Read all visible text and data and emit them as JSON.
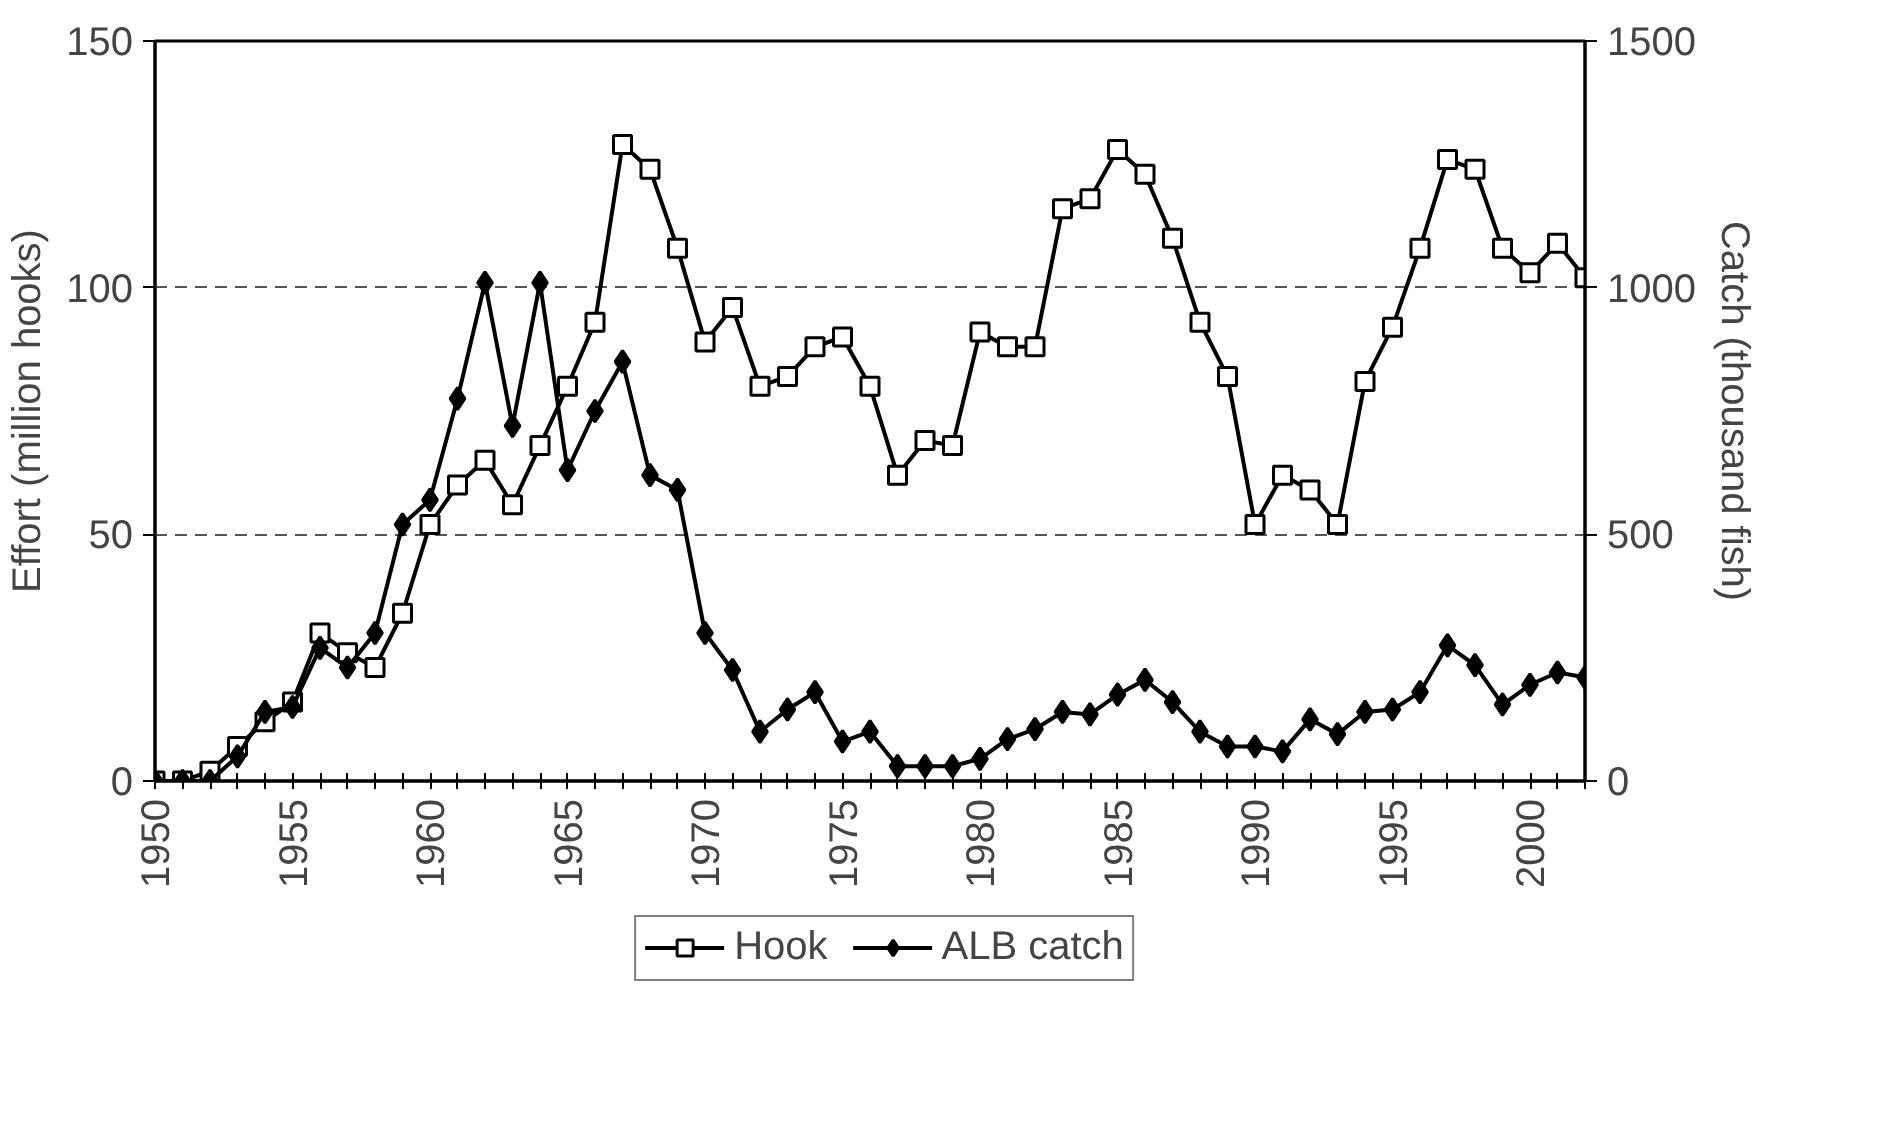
{
  "chart_data": {
    "type": "line",
    "xlabel": null,
    "ylabel": "Effort (million hooks)",
    "y2label": "Catch (thousand fish)",
    "x": [
      1950,
      1951,
      1952,
      1953,
      1954,
      1955,
      1956,
      1957,
      1958,
      1959,
      1960,
      1961,
      1962,
      1963,
      1964,
      1965,
      1966,
      1967,
      1968,
      1969,
      1970,
      1971,
      1972,
      1973,
      1974,
      1975,
      1976,
      1977,
      1978,
      1979,
      1980,
      1981,
      1982,
      1983,
      1984,
      1985,
      1986,
      1987,
      1988,
      1989,
      1990,
      1991,
      1992,
      1993,
      1994,
      1995,
      1996,
      1997,
      1998,
      1999,
      2000,
      2001,
      2002
    ],
    "series": [
      {
        "name": "Hook",
        "color": "#000000",
        "marker": "square",
        "values": [
          0,
          0,
          2,
          7,
          12,
          16,
          30,
          26,
          23,
          34,
          52,
          60,
          65,
          56,
          68,
          80,
          93,
          129,
          124,
          108,
          89,
          96,
          80,
          82,
          88,
          90,
          80,
          62,
          69,
          68,
          91,
          88,
          88,
          116,
          118,
          128,
          123,
          110,
          93,
          82,
          52,
          62,
          59,
          52,
          81,
          92,
          108,
          126,
          124,
          108,
          103,
          109,
          102
        ]
      },
      {
        "name": "ALB catch",
        "color": "#000000",
        "marker": "diamond",
        "axis": "y2",
        "values": [
          0,
          0,
          0,
          50,
          140,
          150,
          270,
          230,
          300,
          520,
          570,
          775,
          1010,
          720,
          1010,
          630,
          750,
          850,
          620,
          590,
          300,
          225,
          100,
          145,
          180,
          80,
          100,
          30,
          30,
          30,
          45,
          85,
          105,
          140,
          135,
          175,
          205,
          160,
          100,
          70,
          70,
          60,
          125,
          95,
          140,
          145,
          180,
          275,
          235,
          155,
          195,
          220,
          210
        ]
      }
    ],
    "xlim": [
      1950,
      2002
    ],
    "xticks": [
      1950,
      {
        "value": 1951,
        "label": null
      },
      {
        "value": 1952,
        "label": null
      },
      {
        "value": 1953,
        "label": null
      },
      {
        "value": 1954,
        "label": null
      },
      1955,
      {
        "value": 1956,
        "label": null
      },
      {
        "value": 1957,
        "label": null
      },
      {
        "value": 1958,
        "label": null
      },
      {
        "value": 1959,
        "label": null
      },
      1960,
      {
        "value": 1961,
        "label": null
      },
      {
        "value": 1962,
        "label": null
      },
      {
        "value": 1963,
        "label": null
      },
      {
        "value": 1964,
        "label": null
      },
      1965,
      {
        "value": 1966,
        "label": null
      },
      {
        "value": 1967,
        "label": null
      },
      {
        "value": 1968,
        "label": null
      },
      {
        "value": 1969,
        "label": null
      },
      1970,
      {
        "value": 1971,
        "label": null
      },
      {
        "value": 1972,
        "label": null
      },
      {
        "value": 1973,
        "label": null
      },
      {
        "value": 1974,
        "label": null
      },
      1975,
      {
        "value": 1976,
        "label": null
      },
      {
        "value": 1977,
        "label": null
      },
      {
        "value": 1978,
        "label": null
      },
      {
        "value": 1979,
        "label": null
      },
      1980,
      {
        "value": 1981,
        "label": null
      },
      {
        "value": 1982,
        "label": null
      },
      {
        "value": 1983,
        "label": null
      },
      {
        "value": 1984,
        "label": null
      },
      1985,
      {
        "value": 1986,
        "label": null
      },
      {
        "value": 1987,
        "label": null
      },
      {
        "value": 1988,
        "label": null
      },
      {
        "value": 1989,
        "label": null
      },
      1990,
      {
        "value": 1991,
        "label": null
      },
      {
        "value": 1992,
        "label": null
      },
      {
        "value": 1993,
        "label": null
      },
      {
        "value": 1994,
        "label": null
      },
      1995,
      {
        "value": 1996,
        "label": null
      },
      {
        "value": 1997,
        "label": null
      },
      {
        "value": 1998,
        "label": null
      },
      {
        "value": 1999,
        "label": null
      },
      2000,
      {
        "value": 2001,
        "label": null
      },
      {
        "value": 2002,
        "label": null
      }
    ],
    "ylim": [
      0,
      150
    ],
    "yticks": [
      0,
      50,
      100,
      150
    ],
    "y2lim": [
      0,
      1500
    ],
    "y2ticks": [
      0,
      500,
      1000,
      1500
    ],
    "grid": "y",
    "legend": "bottom",
    "line_style": "solid"
  }
}
